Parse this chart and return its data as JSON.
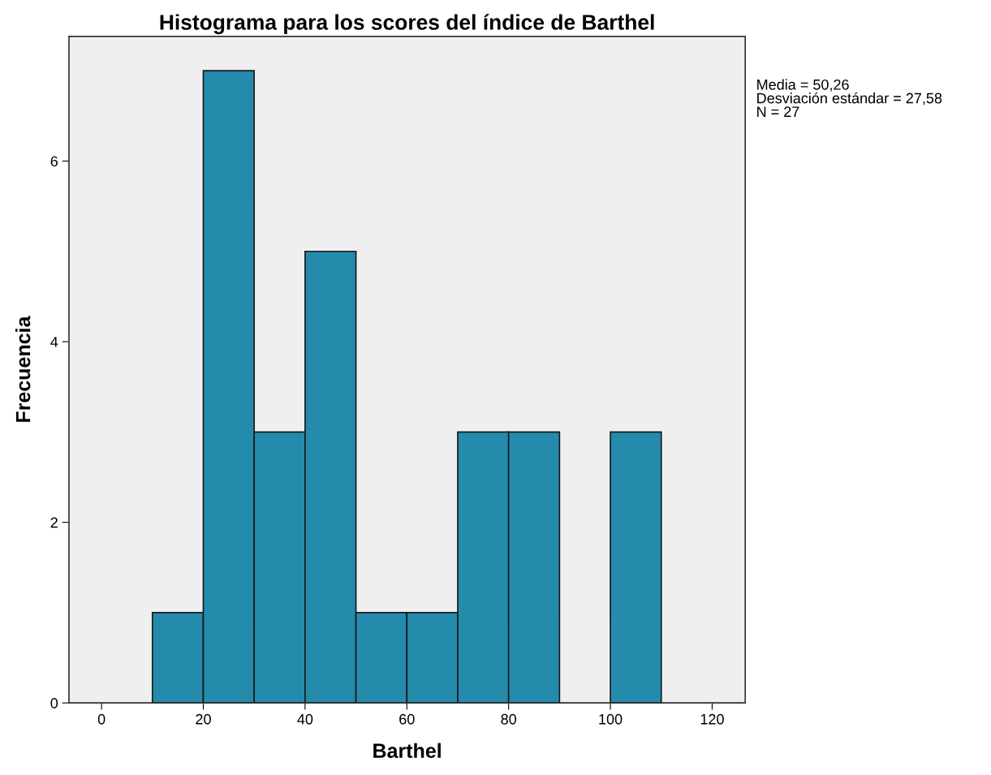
{
  "chart_data": {
    "type": "histogram",
    "title": "Histograma para los scores del índice de Barthel",
    "xlabel": "Barthel",
    "ylabel": "Frecuencia",
    "bins": [
      10,
      20,
      30,
      40,
      50,
      60,
      70,
      80,
      90,
      100,
      110
    ],
    "values": [
      1,
      7,
      3,
      5,
      1,
      1,
      3,
      3,
      0,
      3
    ],
    "color": "#248bad",
    "xlim": [
      -6.4,
      126.5
    ],
    "xticks": [
      0,
      20,
      40,
      60,
      80,
      100,
      120
    ],
    "ylim": [
      0,
      7.38
    ],
    "yticks": [
      0,
      2,
      4,
      6
    ],
    "grid": false,
    "annotations": [
      "Media = 50,26",
      "Desviación estándar = 27,58",
      "N = 27"
    ]
  }
}
